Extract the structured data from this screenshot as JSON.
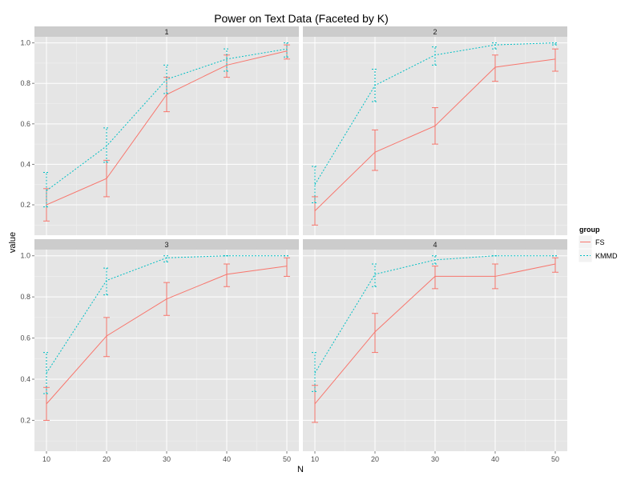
{
  "chart_data": {
    "type": "line",
    "title": "Power on Text Data (Faceted by K)",
    "xlabel": "N",
    "ylabel": "value",
    "x_ticks": [
      10,
      20,
      30,
      40,
      50
    ],
    "y_ticks": [
      0.2,
      0.4,
      0.6,
      0.8,
      1.0
    ],
    "y_tick_labels": [
      "0.2",
      "0.4",
      "0.6",
      "0.8",
      "1.0"
    ],
    "xlim": [
      8,
      52
    ],
    "ylim": [
      0.05,
      1.03
    ],
    "grid": true,
    "legend": {
      "title": "group",
      "position": "right",
      "entries": [
        {
          "name": "FS",
          "color": "#F8766D",
          "dash": "solid"
        },
        {
          "name": "KMMD",
          "color": "#00BFC4",
          "dash": "dotted"
        }
      ]
    },
    "facets": [
      {
        "label": "1",
        "series": [
          {
            "name": "FS",
            "color": "#F8766D",
            "x": [
              10,
              20,
              30,
              40,
              50
            ],
            "values": [
              0.2,
              0.33,
              0.745,
              0.89,
              0.96
            ],
            "err_low": [
              0.12,
              0.24,
              0.66,
              0.83,
              0.92
            ],
            "err_high": [
              0.28,
              0.42,
              0.83,
              0.94,
              0.99
            ]
          },
          {
            "name": "KMMD",
            "color": "#00BFC4",
            "x": [
              10,
              20,
              30,
              40,
              50
            ],
            "values": [
              0.27,
              0.49,
              0.82,
              0.92,
              0.97
            ],
            "err_low": [
              0.19,
              0.41,
              0.75,
              0.86,
              0.93
            ],
            "err_high": [
              0.36,
              0.58,
              0.89,
              0.97,
              1.0
            ]
          }
        ]
      },
      {
        "label": "2",
        "series": [
          {
            "name": "FS",
            "color": "#F8766D",
            "x": [
              10,
              20,
              30,
              40,
              50
            ],
            "values": [
              0.17,
              0.46,
              0.59,
              0.88,
              0.92
            ],
            "err_low": [
              0.1,
              0.37,
              0.5,
              0.81,
              0.86
            ],
            "err_high": [
              0.24,
              0.57,
              0.68,
              0.94,
              0.97
            ]
          },
          {
            "name": "KMMD",
            "color": "#00BFC4",
            "x": [
              10,
              20,
              30,
              40,
              50
            ],
            "values": [
              0.3,
              0.79,
              0.94,
              0.99,
              1.0
            ],
            "err_low": [
              0.21,
              0.71,
              0.89,
              0.97,
              0.99
            ],
            "err_high": [
              0.39,
              0.87,
              0.98,
              1.0,
              1.0
            ]
          }
        ]
      },
      {
        "label": "3",
        "series": [
          {
            "name": "FS",
            "color": "#F8766D",
            "x": [
              10,
              20,
              30,
              40,
              50
            ],
            "values": [
              0.28,
              0.61,
              0.79,
              0.91,
              0.95
            ],
            "err_low": [
              0.2,
              0.51,
              0.71,
              0.85,
              0.9
            ],
            "err_high": [
              0.36,
              0.7,
              0.87,
              0.96,
              0.99
            ]
          },
          {
            "name": "KMMD",
            "color": "#00BFC4",
            "x": [
              10,
              20,
              30,
              40,
              50
            ],
            "values": [
              0.43,
              0.88,
              0.99,
              1.0,
              1.0
            ],
            "err_low": [
              0.33,
              0.81,
              0.97,
              1.0,
              1.0
            ],
            "err_high": [
              0.53,
              0.94,
              1.0,
              1.0,
              1.0
            ]
          }
        ]
      },
      {
        "label": "4",
        "series": [
          {
            "name": "FS",
            "color": "#F8766D",
            "x": [
              10,
              20,
              30,
              40,
              50
            ],
            "values": [
              0.28,
              0.63,
              0.9,
              0.9,
              0.96
            ],
            "err_low": [
              0.19,
              0.53,
              0.84,
              0.84,
              0.92
            ],
            "err_high": [
              0.37,
              0.72,
              0.95,
              0.96,
              0.99
            ]
          },
          {
            "name": "KMMD",
            "color": "#00BFC4",
            "x": [
              10,
              20,
              30,
              40,
              50
            ],
            "values": [
              0.43,
              0.91,
              0.98,
              1.0,
              1.0
            ],
            "err_low": [
              0.34,
              0.85,
              0.96,
              1.0,
              1.0
            ],
            "err_high": [
              0.53,
              0.96,
              1.0,
              1.0,
              1.0
            ]
          }
        ]
      }
    ]
  }
}
